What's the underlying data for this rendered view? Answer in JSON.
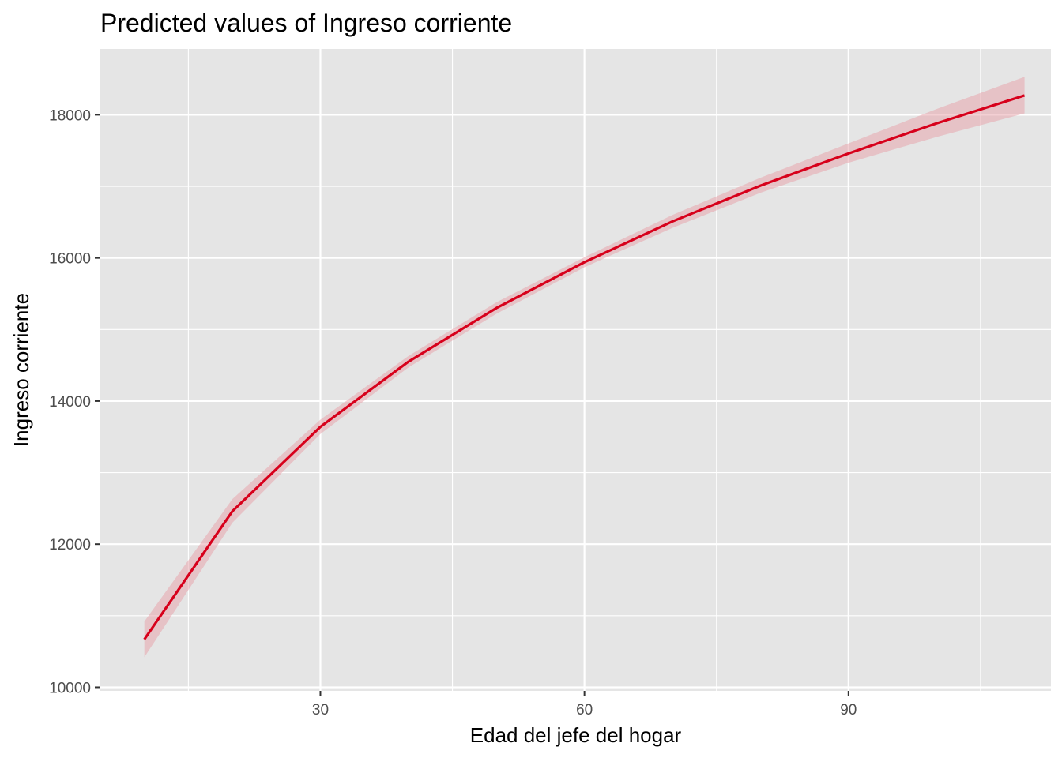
{
  "chart_data": {
    "type": "line",
    "title": "Predicted values of Ingreso corriente",
    "xlabel": "Edad del jefe del hogar",
    "ylabel": "Ingreso corriente",
    "xlim": [
      5,
      113
    ],
    "ylim": [
      9950,
      18920
    ],
    "x_ticks": [
      30,
      60,
      90
    ],
    "x_tick_labels": [
      "30",
      "60",
      "90"
    ],
    "y_ticks": [
      10000,
      12000,
      14000,
      16000,
      18000
    ],
    "y_tick_labels": [
      "10000",
      "12000",
      "14000",
      "16000",
      "18000"
    ],
    "grid": true,
    "series": [
      {
        "x": [
          10,
          20,
          30,
          40,
          50,
          60,
          70,
          80,
          90,
          100,
          110
        ],
        "values": [
          10670,
          12460,
          13640,
          14550,
          15300,
          15940,
          16510,
          17010,
          17460,
          17880,
          18270
        ],
        "lower": [
          10420,
          12300,
          13540,
          14470,
          15220,
          15870,
          16420,
          16910,
          17330,
          17690,
          18020
        ],
        "upper": [
          10920,
          12630,
          13740,
          14630,
          15380,
          16010,
          16600,
          17120,
          17600,
          18080,
          18530
        ]
      }
    ],
    "colors": {
      "line": "#d7001b",
      "ribbon": "#e8a0a8",
      "panel": "#e5e5e5",
      "grid": "#ffffff"
    }
  }
}
